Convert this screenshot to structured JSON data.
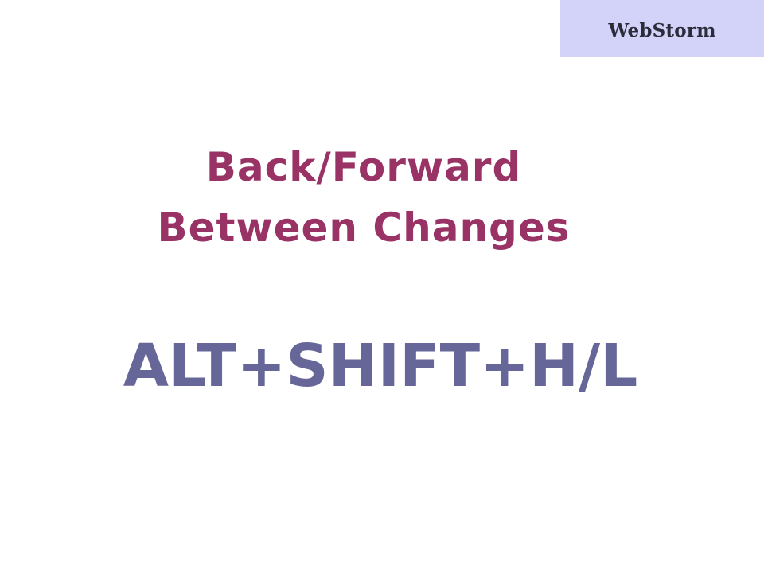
{
  "slide": {
    "brand": "WebStorm",
    "title_lines": [
      "Back/Forward",
      "Between Changes"
    ],
    "shortcut": "ALT+SHIFT+H/L"
  },
  "colors": {
    "brand_box_background": "#d3d3fa",
    "title": "#993366",
    "shortcut": "#666699",
    "background": "#ffffff"
  }
}
